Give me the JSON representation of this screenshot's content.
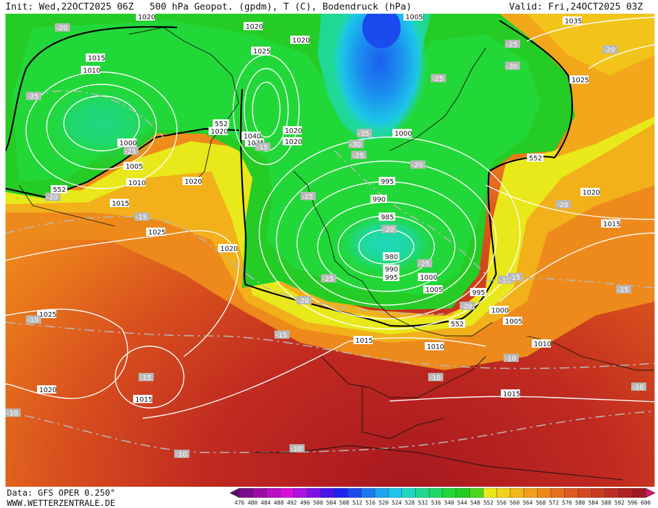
{
  "header": {
    "init": "Init: Wed,22OCT2025 06Z",
    "title": "500 hPa Geopot. (gpdm), T (C), Bodendruck (hPa)",
    "valid": "Valid: Fri,24OCT2025 03Z"
  },
  "footer": {
    "data_source": "Data: GFS OPER 0.250°",
    "website": "WWW.WETTERZENTRALE.DE"
  },
  "colorscale": {
    "values": [
      "476",
      "480",
      "484",
      "488",
      "492",
      "496",
      "500",
      "504",
      "508",
      "512",
      "516",
      "520",
      "524",
      "528",
      "532",
      "536",
      "540",
      "544",
      "548",
      "552",
      "556",
      "560",
      "564",
      "568",
      "572",
      "576",
      "580",
      "584",
      "588",
      "592",
      "596",
      "600"
    ],
    "colors": [
      "#5a0a6e",
      "#7a0b8a",
      "#9b0ca6",
      "#bb0dc2",
      "#d80fd8",
      "#b010e0",
      "#7d12e6",
      "#4a14ec",
      "#1c24ee",
      "#1a4bee",
      "#1b78ee",
      "#1ca6ee",
      "#1cc6e8",
      "#1fd8c2",
      "#1fd894",
      "#1fd866",
      "#1fd838",
      "#22cc22",
      "#49d81a",
      "#e8e81a",
      "#f2d21a",
      "#f2b81a",
      "#f29e1a",
      "#ee861a",
      "#e6701e",
      "#de5a20",
      "#d44a20",
      "#c83c20",
      "#bc2e20",
      "#b02220",
      "#a01820",
      "#d01a6a"
    ]
  },
  "map": {
    "isobar_labels": [
      "1020",
      "1020",
      "1025",
      "1020",
      "1015",
      "1010",
      "1000",
      "1005",
      "1010",
      "1015",
      "1025",
      "1020",
      "1020",
      "1040",
      "1035",
      "1020",
      "1020",
      "1000",
      "995",
      "990",
      "985",
      "980",
      "990",
      "995",
      "1000",
      "1005",
      "995",
      "1000",
      "1005",
      "1010",
      "1015",
      "1010",
      "1020",
      "1015",
      "1025",
      "1020",
      "1015",
      "1025",
      "1020",
      "1005",
      "1035",
      "1015"
    ],
    "temp_labels": [
      "-20",
      "-25",
      "-20",
      "-15",
      "-15",
      "-25",
      "-35",
      "-30",
      "-25",
      "-25",
      "-20",
      "-20",
      "-25",
      "-25",
      "-25",
      "-20",
      "-20",
      "-15",
      "-15",
      "-15",
      "-10",
      "-10",
      "-10",
      "-10",
      "-10",
      "-10",
      "-10",
      "-25",
      "-30",
      "-20",
      "-20",
      "-15",
      "-15"
    ],
    "height_labels": [
      "552",
      "552",
      "552",
      "552"
    ]
  }
}
